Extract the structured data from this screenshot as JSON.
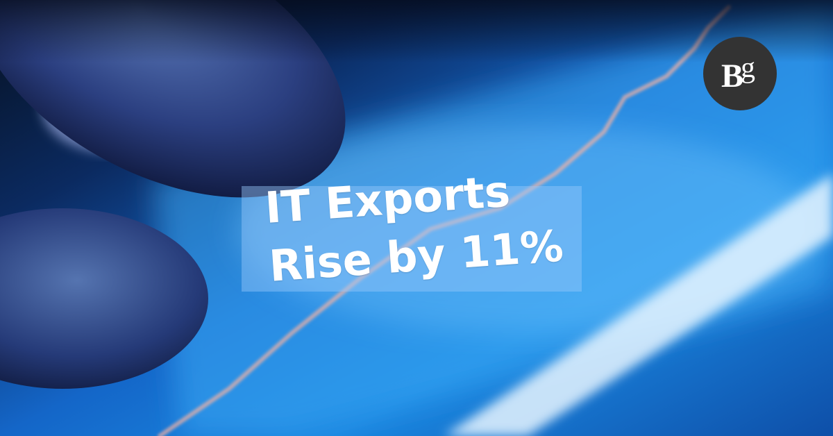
{
  "headline": {
    "line1": "IT Exports",
    "line2": "Rise by 11%"
  },
  "logo": {
    "text": "Bg",
    "icon": "brand-logo"
  },
  "colors": {
    "panel": "#96c8fa",
    "logo_bg": "#333333",
    "text": "#ffffff",
    "chart_line": "#ffb4a0"
  }
}
